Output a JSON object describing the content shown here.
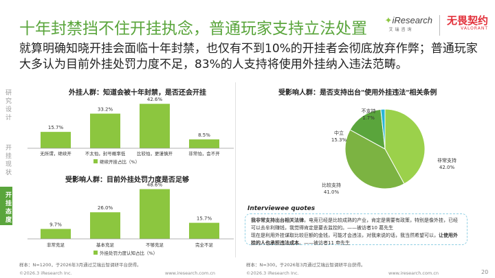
{
  "header": {
    "title": "十年封禁挡不住开挂执念，普通玩家支持立法处置",
    "subtitle": "就算明确知晓开挂会面临十年封禁，也仅有不到10%的开挂者会彻底放弃作弊；普通玩家大多认为目前外挂处罚力度不足，83%的人支持将使用外挂纳入违法范畴。",
    "brand_iresearch": "iResearch",
    "brand_iresearch_sub": "艾瑞咨询",
    "brand_partner": "无畏契约",
    "brand_partner_sub": "VALORANT"
  },
  "sidebar": {
    "items": [
      {
        "label": "研究设计",
        "active": false
      },
      {
        "label": "开挂现状",
        "active": false
      },
      {
        "label": "开挂态度",
        "active": true
      }
    ]
  },
  "colors": {
    "brand_green": "#5aa53c",
    "bar_green": "#8cc63f",
    "pie_light": "#9bd14b",
    "pie_dark": "#5aa53c",
    "pie_mid": "#7cb342",
    "pie_cyan": "#29b6d6"
  },
  "chart_data": [
    {
      "type": "bar",
      "title": "外挂人群：知道会被十年封禁，是否还会开挂",
      "categories": [
        "无所谓，继续开",
        "不太怕，封号概率低",
        "比较怕，更谨慎开",
        "非常怕，会不开"
      ],
      "values": [
        15.7,
        33.2,
        42.6,
        8.5
      ],
      "value_labels": [
        "15.7%",
        "33.2%",
        "42.6%",
        "8.5%"
      ],
      "legend": "继续开挂占比（%）",
      "ylim": [
        0,
        50
      ],
      "grid": false
    },
    {
      "type": "bar",
      "title": "受影响人群：目前外挂处罚力度是否足够",
      "categories": [
        "非常充足",
        "基本充足",
        "不够充足",
        "完全不足"
      ],
      "values": [
        9.7,
        26.0,
        48.6,
        15.7
      ],
      "value_labels": [
        "9.7%",
        "26.0%",
        "48.6%",
        "15.7%"
      ],
      "legend": "外挂处罚力度认知占比（%）",
      "ylim": [
        0,
        55
      ],
      "grid": false
    },
    {
      "type": "pie",
      "title": "受影响人群：是否支持出台\"使用外挂违法\"相关条例",
      "categories": [
        "非常支持",
        "比较支持",
        "中立",
        "不支持"
      ],
      "values": [
        42.0,
        41.0,
        15.3,
        1.7
      ],
      "value_labels": [
        "42.0%",
        "41.0%",
        "15.3%",
        "1.7%"
      ]
    }
  ],
  "notes": {
    "left": "样本：N=1200，于2026年3月通过艾瑞云智调研平台获得。",
    "right": "样本：N=300，于2026年3月通过艾瑞云智调研平台获得。"
  },
  "quotes": {
    "heading": "Interviewee quotes",
    "line1_bold": "我非常支持出台相关法律",
    "line1_rest": "。电竞已经是比较成熟的产业，肯定是需要有政策，特别是像外挂，已经可以去牟利赚钱，我觉得肯定是要去监控的。——被访者10 葛先生",
    "line2_pre": "现在是利用外挂谋取比较巨额的金钱，可能才会违法，对我来说的话，我当然希望可以，",
    "line2_bold": "让使用外挂的人也承担违法成本",
    "line2_post": "。——被访者11 申先生"
  },
  "footer": {
    "copyright_left": "©2026.3 iResearch Inc.",
    "url_left": "www.iresearch.com.cn",
    "copyright_right": "©2026.3 iResearch Inc.",
    "url_right": "www.iresearch.com.cn",
    "page": "20"
  }
}
